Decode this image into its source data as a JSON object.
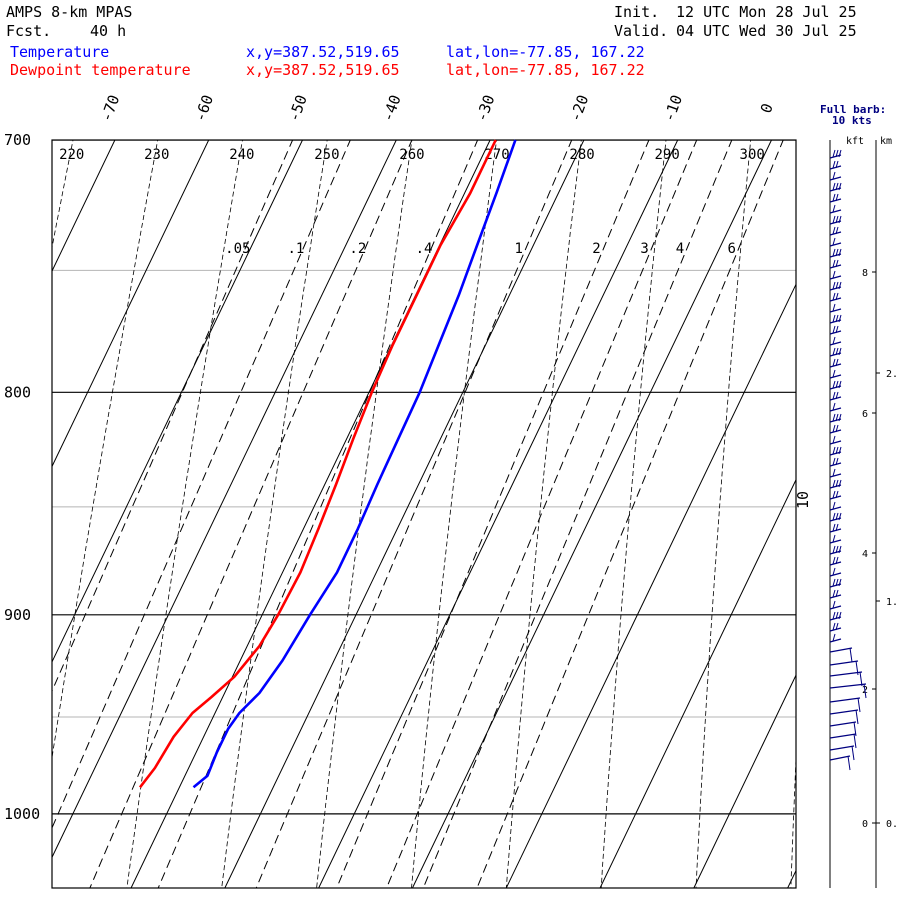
{
  "header": {
    "model": "AMPS 8-km MPAS",
    "fcst_label": "Fcst.",
    "fcst_value": "40 h",
    "init_label": "Init.",
    "init_value": "12 UTC Mon 28 Jul 25",
    "valid_label": "Valid.",
    "valid_value": "04 UTC Wed 30 Jul 25"
  },
  "legend": [
    {
      "name": "Temperature",
      "xy": "x,y=387.52,519.65",
      "latlon": "lat,lon=-77.85, 167.22",
      "color": "#0000ff"
    },
    {
      "name": "Dewpoint temperature",
      "xy": "x,y=387.52,519.65",
      "latlon": "lat,lon=-77.85, 167.22",
      "color": "#ff0000"
    }
  ],
  "wind_panel": {
    "title_line1": "Full barb:",
    "title_line2": "10 kts",
    "kft_label": "kft",
    "km_label": "km",
    "kft_ticks": [
      "8",
      "6",
      "4",
      "2",
      "0"
    ],
    "km_ticks": [
      "2.",
      "1.",
      "0."
    ]
  },
  "chart_data": {
    "type": "skew-t",
    "pressure_levels": [
      700,
      800,
      900,
      1000
    ],
    "pressure_range": [
      700,
      1040
    ],
    "temperature_ticks": [
      -70,
      -60,
      -50,
      -40,
      -30,
      -20,
      -10,
      0
    ],
    "theta_labels": [
      220,
      230,
      240,
      250,
      260,
      270,
      280,
      290,
      300
    ],
    "mixing_ratio_labels": [
      ".05",
      ".1",
      ".2",
      ".4",
      "1",
      "2",
      "3",
      "4",
      "6"
    ],
    "mixing_ratio_values": [
      0.05,
      0.1,
      0.2,
      0.4,
      1,
      2,
      3,
      4,
      6
    ],
    "theta_e_label": "10",
    "series": [
      {
        "name": "Temperature",
        "color": "#0000ff",
        "points": [
          [
            986,
            -28.5
          ],
          [
            980,
            -27.6
          ],
          [
            968,
            -27.8
          ],
          [
            956,
            -27.8
          ],
          [
            948,
            -27.4
          ],
          [
            938,
            -26.3
          ],
          [
            922,
            -25.5
          ],
          [
            900,
            -24.9
          ],
          [
            880,
            -24.2
          ],
          [
            860,
            -24.2
          ],
          [
            840,
            -24.4
          ],
          [
            820,
            -24.5
          ],
          [
            800,
            -24.6
          ],
          [
            780,
            -25.0
          ],
          [
            760,
            -25.4
          ],
          [
            740,
            -26.0
          ],
          [
            720,
            -26.6
          ],
          [
            700,
            -27.3
          ]
        ]
      },
      {
        "name": "Dewpoint temperature",
        "color": "#ff0000",
        "points": [
          [
            986,
            -34.2
          ],
          [
            976,
            -33.6
          ],
          [
            960,
            -33.2
          ],
          [
            948,
            -32.4
          ],
          [
            940,
            -31.2
          ],
          [
            930,
            -29.8
          ],
          [
            915,
            -28.7
          ],
          [
            900,
            -28.3
          ],
          [
            880,
            -28.1
          ],
          [
            860,
            -28.4
          ],
          [
            840,
            -28.8
          ],
          [
            820,
            -29.3
          ],
          [
            800,
            -29.7
          ],
          [
            780,
            -29.9
          ],
          [
            760,
            -29.9
          ],
          [
            740,
            -29.9
          ],
          [
            720,
            -29.4
          ],
          [
            700,
            -29.4
          ]
        ]
      }
    ],
    "wind_profile_note": "wind barbs along right-hand panel"
  }
}
